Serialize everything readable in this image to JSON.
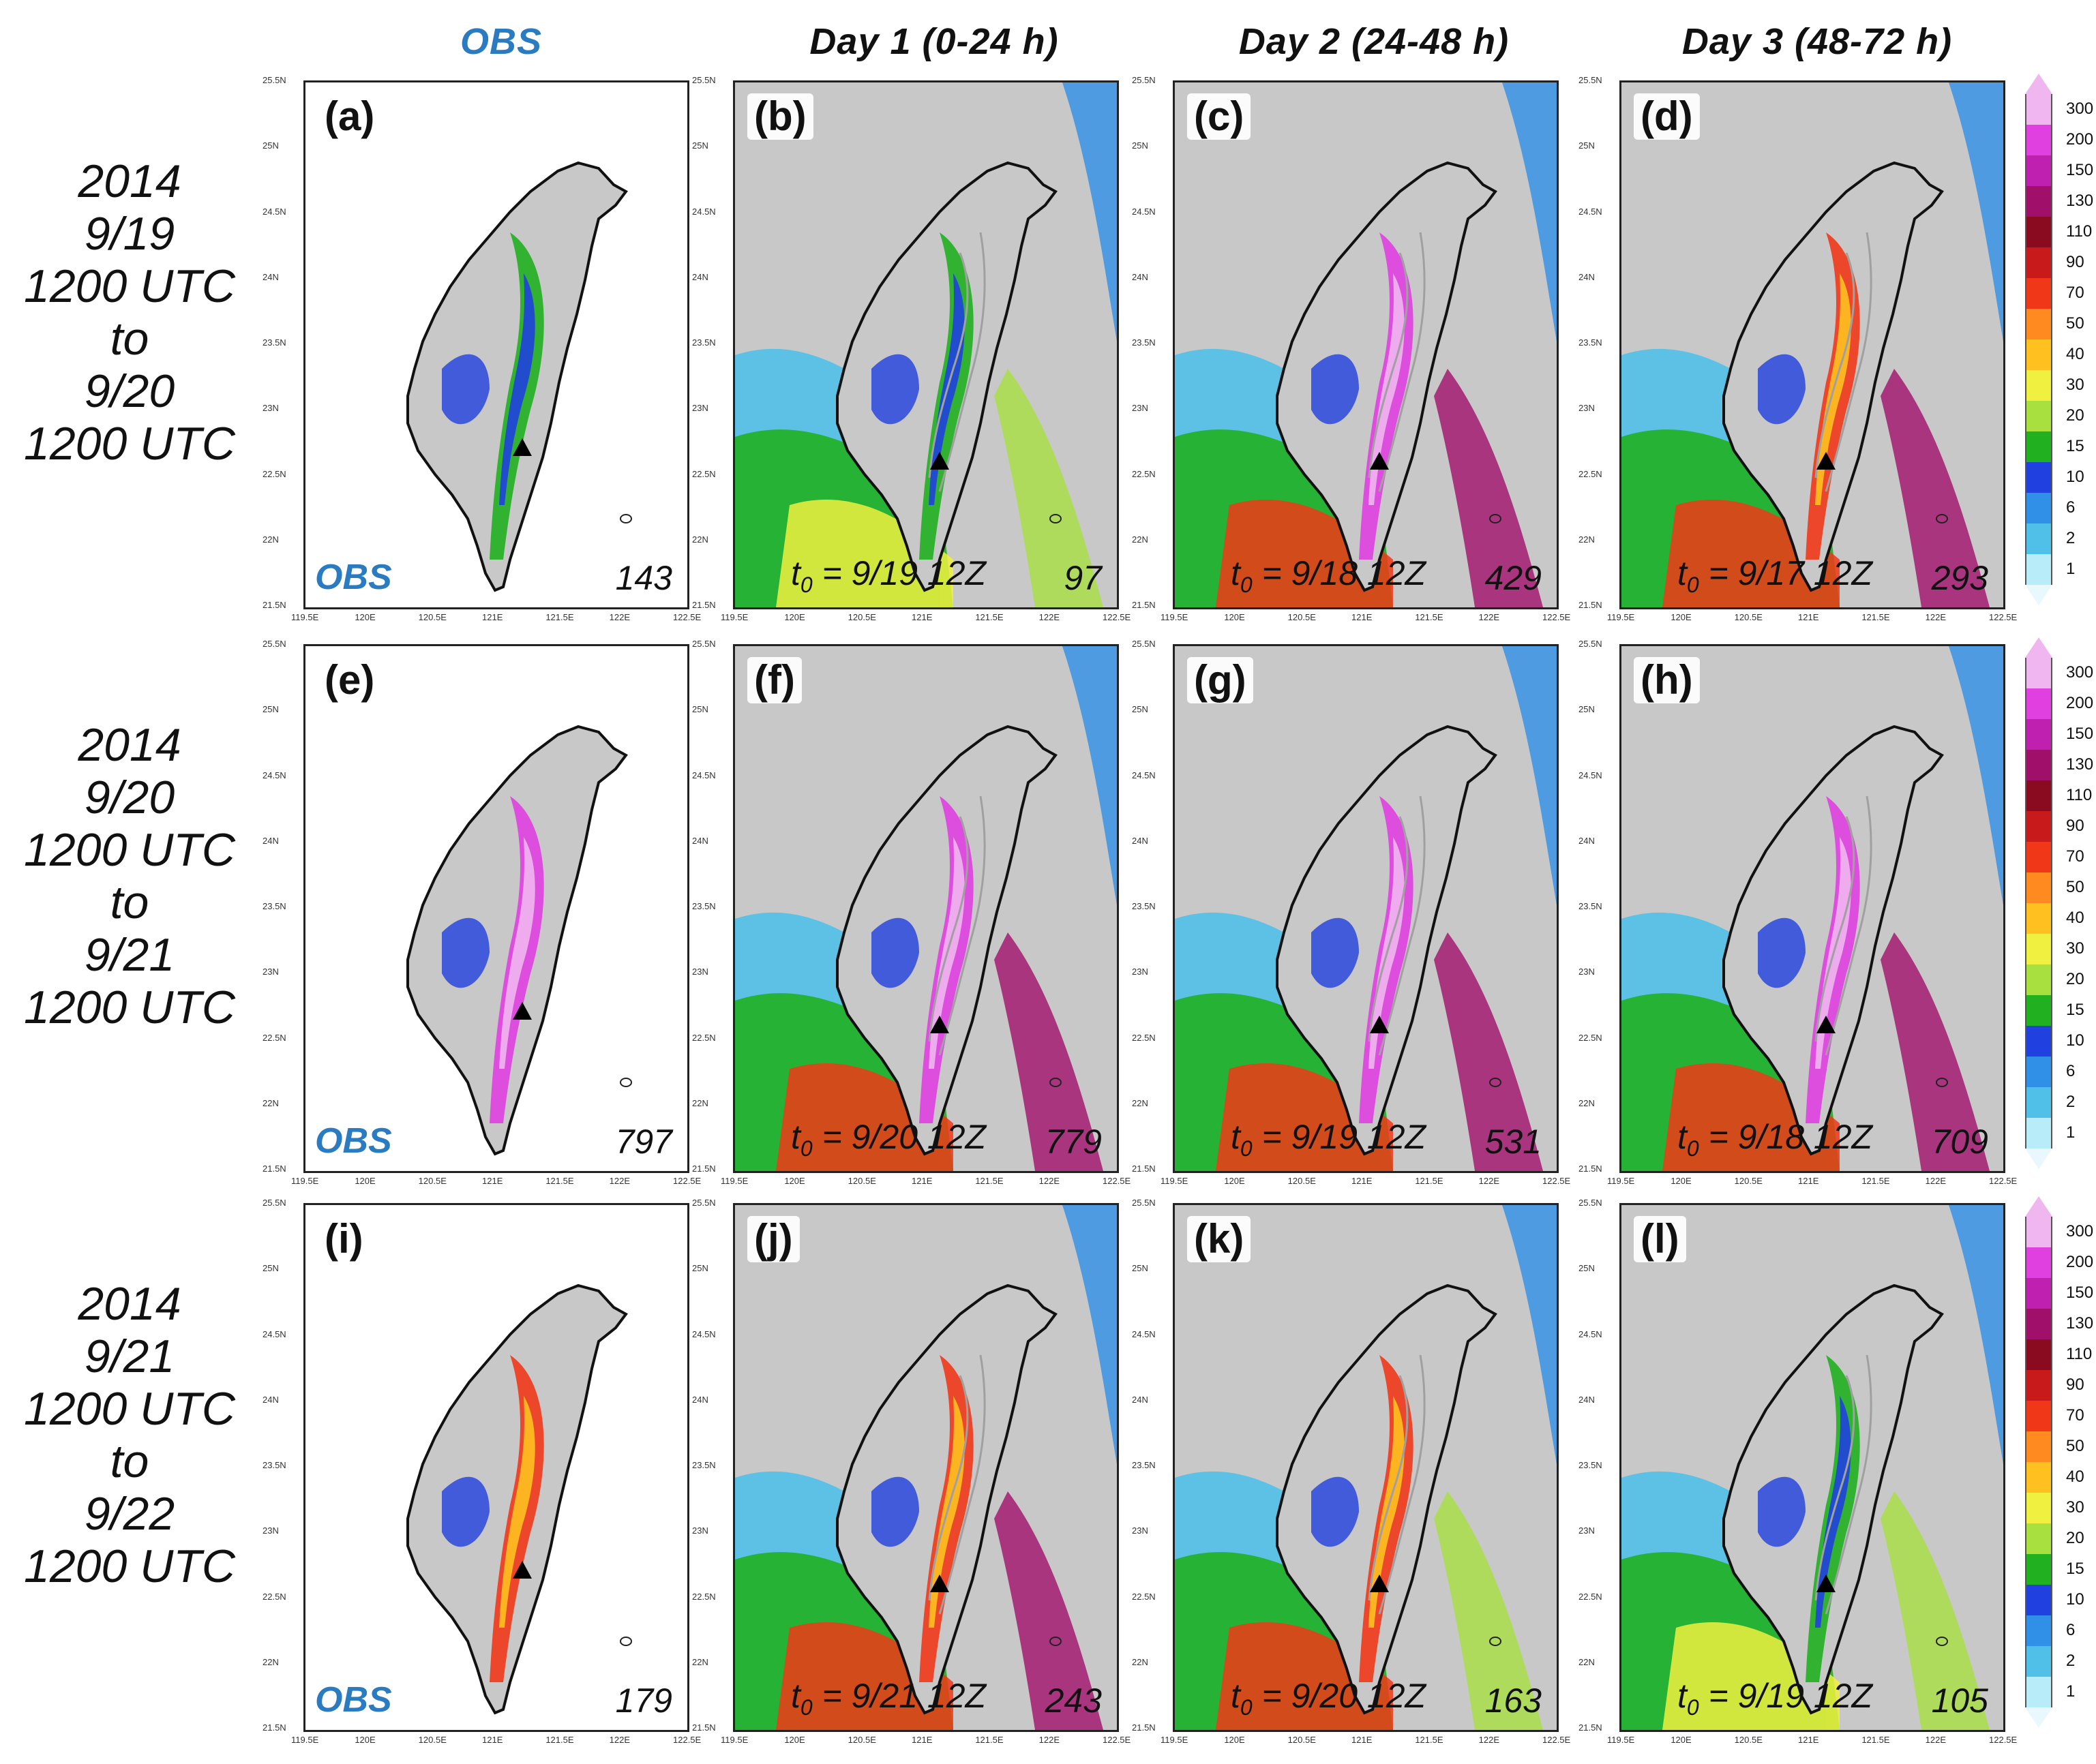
{
  "columns": [
    {
      "heading": "OBS",
      "style": "obs"
    },
    {
      "heading": "Day 1 (0-24 h)"
    },
    {
      "heading": "Day 2 (24-48 h)"
    },
    {
      "heading": "Day 3 (48-72 h)"
    }
  ],
  "rows": [
    {
      "label": [
        "2014",
        "9/19",
        "1200 UTC",
        "to",
        "9/20",
        "1200 UTC"
      ],
      "panels": [
        {
          "id": "(a)",
          "kind": "obs",
          "tag": "OBS",
          "max": "143",
          "intensity": 0.25
        },
        {
          "id": "(b)",
          "kind": "fcst",
          "t0_var": "t",
          "t0_sub": "0",
          "t0_text": " = 9/19 12Z",
          "max": "97",
          "intensity": 0.15
        },
        {
          "id": "(c)",
          "kind": "fcst",
          "t0_var": "t",
          "t0_sub": "0",
          "t0_text": " = 9/18 12Z",
          "max": "429",
          "intensity": 0.65
        },
        {
          "id": "(d)",
          "kind": "fcst",
          "t0_var": "t",
          "t0_sub": "0",
          "t0_text": " = 9/17 12Z",
          "max": "293",
          "intensity": 0.55
        }
      ]
    },
    {
      "label": [
        "2014",
        "9/20",
        "1200 UTC",
        "to",
        "9/21",
        "1200 UTC"
      ],
      "panels": [
        {
          "id": "(e)",
          "kind": "obs",
          "tag": "OBS",
          "max": "797",
          "intensity": 0.8
        },
        {
          "id": "(f)",
          "kind": "fcst",
          "t0_var": "t",
          "t0_sub": "0",
          "t0_text": " = 9/20 12Z",
          "max": "779",
          "intensity": 0.85
        },
        {
          "id": "(g)",
          "kind": "fcst",
          "t0_var": "t",
          "t0_sub": "0",
          "t0_text": " = 9/19 12Z",
          "max": "531",
          "intensity": 0.75
        },
        {
          "id": "(h)",
          "kind": "fcst",
          "t0_var": "t",
          "t0_sub": "0",
          "t0_text": " = 9/18 12Z",
          "max": "709",
          "intensity": 0.8
        }
      ]
    },
    {
      "label": [
        "2014",
        "9/21",
        "1200 UTC",
        "to",
        "9/22",
        "1200 UTC"
      ],
      "panels": [
        {
          "id": "(i)",
          "kind": "obs",
          "tag": "OBS",
          "max": "179",
          "intensity": 0.45
        },
        {
          "id": "(j)",
          "kind": "fcst",
          "t0_var": "t",
          "t0_sub": "0",
          "t0_text": " = 9/21 12Z",
          "max": "243",
          "intensity": 0.55
        },
        {
          "id": "(k)",
          "kind": "fcst",
          "t0_var": "t",
          "t0_sub": "0",
          "t0_text": " = 9/20 12Z",
          "max": "163",
          "intensity": 0.45
        },
        {
          "id": "(l)",
          "kind": "fcst",
          "t0_var": "t",
          "t0_sub": "0",
          "t0_text": " = 9/19 12Z",
          "max": "105",
          "intensity": 0.3
        }
      ]
    }
  ],
  "axes": {
    "lat_labels": [
      "25.5N",
      "25N",
      "24.5N",
      "24N",
      "23.5N",
      "23N",
      "22.5N",
      "22N",
      "21.5N"
    ],
    "lon_labels": [
      "119.5E",
      "120E",
      "120.5E",
      "121E",
      "121.5E",
      "122E",
      "122.5E"
    ]
  },
  "colorbar": {
    "ticks": [
      "300",
      "200",
      "150",
      "130",
      "110",
      "90",
      "70",
      "50",
      "40",
      "30",
      "20",
      "15",
      "10",
      "6",
      "2",
      "1"
    ],
    "colors": [
      "#f0b6f0",
      "#e040e0",
      "#c020b0",
      "#a0106a",
      "#8a0a20",
      "#c81a1a",
      "#f03818",
      "#ff8a20",
      "#ffc020",
      "#f0f040",
      "#a8e040",
      "#20b020",
      "#2040e0",
      "#3090e8",
      "#50c0e8",
      "#b8ecf8"
    ]
  }
}
